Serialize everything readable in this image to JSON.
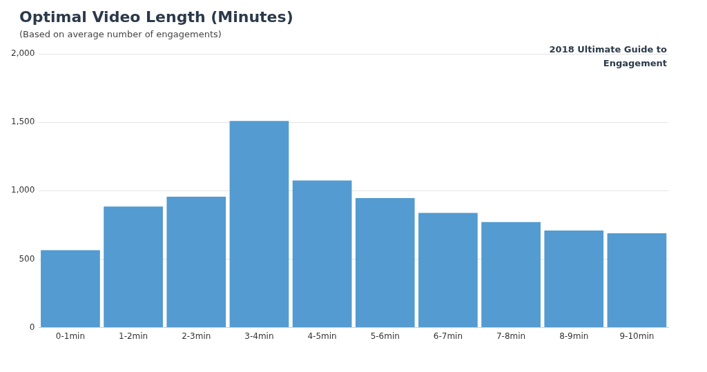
{
  "chart_data": {
    "type": "bar",
    "title": "Optimal Video Length (Minutes)",
    "subtitle": "(Based on average number of engagements)",
    "annotations": [
      "2018 Ultimate Guide to Engagement"
    ],
    "categories": [
      "0-1min",
      "1-2min",
      "2-3min",
      "3-4min",
      "4-5min",
      "5-6min",
      "6-7min",
      "7-8min",
      "8-9min",
      "9-10min"
    ],
    "values": [
      565,
      884,
      956,
      1510,
      1075,
      946,
      838,
      771,
      709,
      689
    ],
    "color": "#539bd0",
    "ylim": [
      0,
      2000
    ],
    "yticks": [
      0,
      500,
      {
        "value": 1000,
        "label": "1,000"
      },
      {
        "value": 1500,
        "label": "1,500"
      },
      {
        "value": 2000,
        "label": "2,000"
      }
    ],
    "grid": "y",
    "legend": false
  }
}
